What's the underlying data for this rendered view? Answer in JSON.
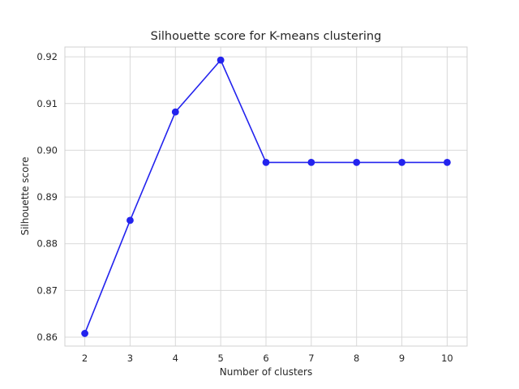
{
  "chart_data": {
    "type": "line",
    "title": "Silhouette score for K-means clustering",
    "xlabel": "Number of clusters",
    "ylabel": "Silhouette score",
    "x": [
      2,
      3,
      4,
      5,
      6,
      7,
      8,
      9,
      10
    ],
    "series": [
      {
        "values": [
          0.8608,
          0.885,
          0.9082,
          0.9193,
          0.8974,
          0.8974,
          0.8974,
          0.8974,
          0.8974
        ],
        "color": "#2323ee",
        "marker": "circle"
      }
    ],
    "xticks": [
      2,
      3,
      4,
      5,
      6,
      7,
      8,
      9,
      10
    ],
    "yticks": [
      "0.86",
      "0.87",
      "0.88",
      "0.89",
      "0.90",
      "0.91",
      "0.92"
    ],
    "xlim": [
      1.56,
      10.44
    ],
    "ylim": [
      0.8581,
      0.9221
    ],
    "grid": true,
    "background": "#ffffff"
  }
}
